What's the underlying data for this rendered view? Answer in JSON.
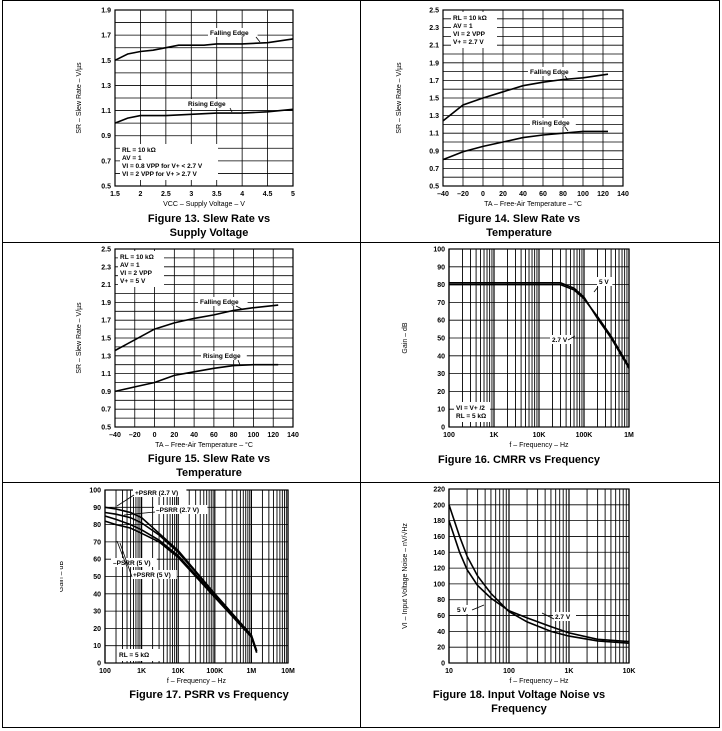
{
  "colors": {
    "line": "#000000",
    "grid": "#000000",
    "background": "#ffffff"
  },
  "chart_data": [
    {
      "id": "fig13",
      "type": "line",
      "caption_line1": "Figure 13. Slew Rate vs",
      "caption_line2": "Supply Voltage",
      "xlabel": "VCC – Supply Voltage – V",
      "ylabel": "SR – Slew Rate – V/µs",
      "xscale": "linear",
      "xlim": [
        1.5,
        5
      ],
      "ylim": [
        0.5,
        1.9
      ],
      "xticks": [
        1.5,
        2,
        2.5,
        3,
        3.5,
        4,
        4.5,
        5
      ],
      "xtick_labels": [
        "1.5",
        "2",
        "2.5",
        "3",
        "3.5",
        "4",
        "4.5",
        "5"
      ],
      "yticks": [
        0.5,
        0.7,
        0.9,
        1.1,
        1.3,
        1.5,
        1.7,
        1.9
      ],
      "ytick_labels": [
        "0.5",
        "0.7",
        "0.9",
        "1.1",
        "1.3",
        "1.5",
        "1.7",
        "1.9"
      ],
      "conditions": [
        "RL = 10 kΩ",
        "AV = 1",
        "VI = 0.8 VPP for V+ < 2.7 V",
        "VI = 2 VPP for V+ > 2.7 V"
      ],
      "series": [
        {
          "name": "Falling Edge",
          "x": [
            1.5,
            1.75,
            2,
            2.25,
            2.5,
            2.75,
            3,
            3.25,
            3.5,
            4,
            4.5,
            5
          ],
          "y": [
            1.5,
            1.55,
            1.57,
            1.58,
            1.6,
            1.62,
            1.62,
            1.62,
            1.63,
            1.63,
            1.64,
            1.67
          ]
        },
        {
          "name": "Rising Edge",
          "x": [
            1.5,
            1.75,
            2,
            2.5,
            3,
            3.5,
            4,
            4.5,
            5
          ],
          "y": [
            1.0,
            1.04,
            1.06,
            1.06,
            1.07,
            1.08,
            1.08,
            1.09,
            1.11
          ]
        }
      ]
    },
    {
      "id": "fig14",
      "type": "line",
      "caption_line1": "Figure 14. Slew Rate vs",
      "caption_line2": "Temperature",
      "xlabel": "TA – Free-Air Temperature – °C",
      "ylabel": "SR – Slew Rate – V/µs",
      "xscale": "linear",
      "xlim": [
        -40,
        140
      ],
      "ylim": [
        0.5,
        2.5
      ],
      "xticks": [
        -40,
        -20,
        0,
        20,
        40,
        60,
        80,
        100,
        120,
        140
      ],
      "xtick_labels": [
        "–40",
        "–20",
        "0",
        "20",
        "40",
        "60",
        "80",
        "100",
        "120",
        "140"
      ],
      "yticks": [
        0.5,
        0.7,
        0.9,
        1.1,
        1.3,
        1.5,
        1.7,
        1.9,
        2.1,
        2.3,
        2.5
      ],
      "ytick_labels": [
        "0.5",
        "0.7",
        "0.9",
        "1.1",
        "1.3",
        "1.5",
        "1.7",
        "1.9",
        "2.1",
        "2.3",
        "2.5"
      ],
      "conditions": [
        "RL = 10 kΩ",
        "AV = 1",
        "VI = 2 VPP",
        "V+ = 2.7 V"
      ],
      "series": [
        {
          "name": "Falling Edge",
          "x": [
            -40,
            -20,
            0,
            20,
            40,
            60,
            80,
            100,
            125
          ],
          "y": [
            1.24,
            1.42,
            1.5,
            1.57,
            1.64,
            1.68,
            1.71,
            1.73,
            1.77
          ]
        },
        {
          "name": "Rising Edge",
          "x": [
            -40,
            -20,
            0,
            20,
            40,
            60,
            80,
            100,
            125
          ],
          "y": [
            0.8,
            0.89,
            0.95,
            1.0,
            1.05,
            1.08,
            1.1,
            1.12,
            1.12
          ]
        }
      ]
    },
    {
      "id": "fig15",
      "type": "line",
      "caption_line1": "Figure 15. Slew Rate vs",
      "caption_line2": "Temperature",
      "xlabel": "TA – Free-Air Temperature – °C",
      "ylabel": "SR – Slew Rate – V/µs",
      "xscale": "linear",
      "xlim": [
        -40,
        140
      ],
      "ylim": [
        0.5,
        2.5
      ],
      "xticks": [
        -40,
        -20,
        0,
        20,
        40,
        60,
        80,
        100,
        120,
        140
      ],
      "xtick_labels": [
        "–40",
        "–20",
        "0",
        "20",
        "40",
        "60",
        "80",
        "100",
        "120",
        "140"
      ],
      "yticks": [
        0.5,
        0.7,
        0.9,
        1.1,
        1.3,
        1.5,
        1.7,
        1.9,
        2.1,
        2.3,
        2.5
      ],
      "ytick_labels": [
        "0.5",
        "0.7",
        "0.9",
        "1.1",
        "1.3",
        "1.5",
        "1.7",
        "1.9",
        "2.1",
        "2.3",
        "2.5"
      ],
      "conditions": [
        "RL = 10 kΩ",
        "AV = 1",
        "VI = 2 VPP",
        "V+ = 5 V"
      ],
      "series": [
        {
          "name": "Falling Edge",
          "x": [
            -40,
            -20,
            0,
            20,
            40,
            60,
            80,
            100,
            125
          ],
          "y": [
            1.36,
            1.48,
            1.6,
            1.67,
            1.72,
            1.76,
            1.81,
            1.84,
            1.87
          ]
        },
        {
          "name": "Rising Edge",
          "x": [
            -40,
            -20,
            0,
            20,
            40,
            60,
            80,
            100,
            125
          ],
          "y": [
            0.9,
            0.95,
            1.0,
            1.08,
            1.12,
            1.16,
            1.19,
            1.2,
            1.2
          ]
        }
      ]
    },
    {
      "id": "fig16",
      "type": "line",
      "caption_line1": "Figure 16. CMRR vs Frequency",
      "caption_line2": "",
      "xlabel": "f – Frequency – Hz",
      "ylabel": "Gain – dB",
      "xscale": "log",
      "xlim": [
        100,
        1000000
      ],
      "ylim": [
        0,
        100
      ],
      "xticks": [
        100,
        1000,
        10000,
        100000,
        1000000
      ],
      "xtick_labels": [
        "100",
        "1K",
        "10K",
        "100K",
        "1M"
      ],
      "yticks": [
        0,
        10,
        20,
        30,
        40,
        50,
        60,
        70,
        80,
        90,
        100
      ],
      "ytick_labels": [
        "0",
        "10",
        "20",
        "30",
        "40",
        "50",
        "60",
        "70",
        "80",
        "90",
        "100"
      ],
      "conditions": [
        "VI = V+ /2",
        "RL = 5 kΩ"
      ],
      "series": [
        {
          "name": "5 V",
          "x": [
            100,
            1000,
            10000,
            30000,
            60000,
            100000,
            200000,
            400000,
            1000000
          ],
          "y": [
            81,
            81,
            81,
            81,
            78,
            73,
            61,
            50,
            33
          ]
        },
        {
          "name": "2.7 V",
          "x": [
            100,
            1000,
            10000,
            30000,
            60000,
            100000,
            200000,
            400000,
            1000000
          ],
          "y": [
            80,
            80,
            80,
            80,
            77,
            72,
            62,
            51,
            34
          ]
        }
      ]
    },
    {
      "id": "fig17",
      "type": "line",
      "caption_line1": "Figure 17. PSRR vs Frequency",
      "caption_line2": "",
      "xlabel": "f – Frequency – Hz",
      "ylabel": "Gain – dB",
      "xscale": "log",
      "xlim": [
        100,
        10000000
      ],
      "ylim": [
        0,
        100
      ],
      "xticks": [
        100,
        1000,
        10000,
        100000,
        1000000,
        10000000
      ],
      "xtick_labels": [
        "100",
        "1K",
        "10K",
        "100K",
        "1M",
        "10M"
      ],
      "yticks": [
        0,
        10,
        20,
        30,
        40,
        50,
        60,
        70,
        80,
        90,
        100
      ],
      "ytick_labels": [
        "0",
        "10",
        "20",
        "30",
        "40",
        "50",
        "60",
        "70",
        "80",
        "90",
        "100"
      ],
      "conditions": [
        "RL = 5 kΩ"
      ],
      "series": [
        {
          "name": "+PSRR (2.7 V)",
          "x": [
            100,
            200,
            500,
            1000,
            3000,
            10000,
            100000,
            1000000,
            1400000
          ],
          "y": [
            90,
            89,
            87,
            84,
            75,
            65,
            40,
            16,
            7
          ]
        },
        {
          "name": "–PSRR (2.7 V)",
          "x": [
            100,
            200,
            500,
            1000,
            3000,
            10000,
            100000,
            1000000,
            1400000
          ],
          "y": [
            87,
            86,
            84,
            81,
            74,
            64,
            40,
            16,
            7
          ]
        },
        {
          "name": "–PSRR (5 V)",
          "x": [
            100,
            200,
            500,
            1000,
            3000,
            10000,
            100000,
            1000000,
            1400000
          ],
          "y": [
            85,
            83,
            80,
            77,
            71,
            62,
            39,
            15,
            6
          ]
        },
        {
          "name": "+PSRR (5 V)",
          "x": [
            100,
            200,
            500,
            1000,
            3000,
            10000,
            100000,
            1000000,
            1400000
          ],
          "y": [
            82,
            80,
            78,
            75,
            70,
            61,
            38,
            15,
            6
          ]
        }
      ]
    },
    {
      "id": "fig18",
      "type": "line",
      "caption_line1": "Figure 18. Input Voltage Noise vs",
      "caption_line2": "Frequency",
      "xlabel": "f – Frequency – Hz",
      "ylabel": "VI – Input Voltage Noise – nV/√Hz",
      "xscale": "log",
      "xlim": [
        10,
        10000
      ],
      "ylim": [
        0,
        220
      ],
      "xticks": [
        10,
        100,
        1000,
        10000
      ],
      "xtick_labels": [
        "10",
        "100",
        "1K",
        "10K"
      ],
      "yticks": [
        0,
        20,
        40,
        60,
        80,
        100,
        120,
        140,
        160,
        180,
        200,
        220
      ],
      "ytick_labels": [
        "0",
        "20",
        "40",
        "60",
        "80",
        "100",
        "120",
        "140",
        "160",
        "180",
        "200",
        "220"
      ],
      "conditions": [],
      "series": [
        {
          "name": "5 V",
          "x": [
            10,
            15,
            20,
            30,
            50,
            100,
            200,
            500,
            1000,
            3000,
            10000
          ],
          "y": [
            200,
            160,
            135,
            110,
            88,
            65,
            52,
            40,
            34,
            28,
            25
          ]
        },
        {
          "name": "2.7 V",
          "x": [
            10,
            15,
            20,
            30,
            50,
            100,
            200,
            500,
            1000,
            3000,
            10000
          ],
          "y": [
            180,
            140,
            118,
            98,
            82,
            66,
            57,
            46,
            38,
            30,
            27
          ]
        }
      ]
    }
  ]
}
